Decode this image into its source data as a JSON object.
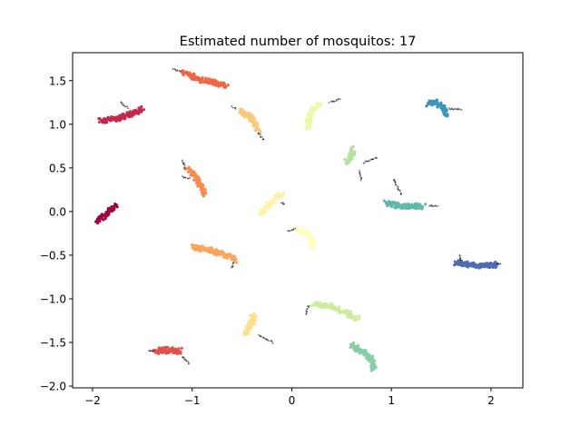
{
  "chart_data": {
    "type": "scatter",
    "title": "Estimated number of mosquitos: 17",
    "xlabel": "",
    "ylabel": "",
    "xlim": [
      -2.2,
      2.32
    ],
    "ylim": [
      -2.02,
      1.82
    ],
    "xticks": [
      -2,
      -1,
      0,
      1,
      2
    ],
    "xtick_labels": [
      "−2",
      "−1",
      "0",
      "1",
      "2"
    ],
    "yticks": [
      -2.0,
      -1.5,
      -1.0,
      -0.5,
      0.0,
      0.5,
      1.0,
      1.5
    ],
    "ytick_labels": [
      "−2.0",
      "−1.5",
      "−1.0",
      "−0.5",
      "0.0",
      "0.5",
      "1.0",
      "1.5"
    ],
    "grid": false,
    "legend": "none",
    "noise_color": "#000000",
    "clusters": [
      {
        "id": 0,
        "color": "#9e0142",
        "body": [
          [
            -1.96,
            -0.1
          ],
          [
            -1.85,
            -0.02
          ],
          [
            -1.77,
            0.07
          ]
        ],
        "legs": []
      },
      {
        "id": 1,
        "color": "#c2294a",
        "body": [
          [
            -1.92,
            1.04
          ],
          [
            -1.75,
            1.07
          ],
          [
            -1.6,
            1.12
          ],
          [
            -1.5,
            1.17
          ]
        ],
        "legs": [
          [
            [
              -1.65,
              1.19
            ],
            [
              -1.72,
              1.25
            ]
          ]
        ]
      },
      {
        "id": 2,
        "color": "#e1504a",
        "body": [
          [
            -1.38,
            -1.6
          ],
          [
            -1.25,
            -1.59
          ],
          [
            -1.12,
            -1.6
          ]
        ],
        "legs": [
          [
            [
              -1.1,
              -1.66
            ],
            [
              -1.03,
              -1.74
            ]
          ],
          [
            [
              -1.39,
              -1.6
            ],
            [
              -1.44,
              -1.6
            ]
          ]
        ]
      },
      {
        "id": 3,
        "color": "#f06744",
        "body": [
          [
            -1.1,
            1.6
          ],
          [
            -0.95,
            1.52
          ],
          [
            -0.8,
            1.48
          ],
          [
            -0.66,
            1.44
          ]
        ],
        "legs": [
          [
            [
              -1.12,
              1.61
            ],
            [
              -1.19,
              1.63
            ]
          ]
        ]
      },
      {
        "id": 4,
        "color": "#f88d51",
        "body": [
          [
            -1.05,
            0.5
          ],
          [
            -0.98,
            0.42
          ],
          [
            -0.91,
            0.3
          ],
          [
            -0.88,
            0.19
          ]
        ],
        "legs": [
          [
            [
              -1.07,
              0.5
            ],
            [
              -1.1,
              0.58
            ]
          ],
          [
            [
              -1.03,
              0.38
            ],
            [
              -1.1,
              0.4
            ]
          ]
        ]
      },
      {
        "id": 5,
        "color": "#fba45c",
        "body": [
          [
            -1.0,
            -0.41
          ],
          [
            -0.83,
            -0.44
          ],
          [
            -0.68,
            -0.49
          ],
          [
            -0.57,
            -0.56
          ]
        ],
        "legs": [
          [
            [
              -0.58,
              -0.58
            ],
            [
              -0.6,
              -0.65
            ]
          ]
        ]
      },
      {
        "id": 6,
        "color": "#fdc877",
        "body": [
          [
            -0.52,
            1.16
          ],
          [
            -0.43,
            1.09
          ],
          [
            -0.36,
            1.0
          ],
          [
            -0.34,
            0.93
          ]
        ],
        "legs": [
          [
            [
              -0.56,
              1.18
            ],
            [
              -0.6,
              1.2
            ]
          ],
          [
            [
              -0.34,
              0.9
            ],
            [
              -0.28,
              0.82
            ]
          ]
        ]
      },
      {
        "id": 7,
        "color": "#fee08b",
        "body": [
          [
            -0.47,
            -1.4
          ],
          [
            -0.43,
            -1.34
          ],
          [
            -0.4,
            -1.26
          ],
          [
            -0.38,
            -1.18
          ]
        ],
        "legs": [
          [
            [
              -0.33,
              -1.42
            ],
            [
              -0.19,
              -1.5
            ]
          ]
        ]
      },
      {
        "id": 8,
        "color": "#fff2a9",
        "body": [
          [
            -0.31,
            -0.03
          ],
          [
            -0.24,
            0.07
          ],
          [
            -0.16,
            0.15
          ],
          [
            -0.09,
            0.2
          ]
        ],
        "legs": [
          [
            [
              -0.1,
              0.1
            ],
            [
              -0.08,
              0.09
            ]
          ]
        ]
      },
      {
        "id": 9,
        "color": "#ffffbe",
        "body": [
          [
            0.06,
            -0.21
          ],
          [
            0.14,
            -0.24
          ],
          [
            0.2,
            -0.3
          ],
          [
            0.22,
            -0.4
          ]
        ],
        "legs": [
          [
            [
              0.03,
              -0.2
            ],
            [
              -0.04,
              -0.22
            ]
          ]
        ]
      },
      {
        "id": 10,
        "color": "#eff8a6",
        "body": [
          [
            0.16,
            0.95
          ],
          [
            0.17,
            1.05
          ],
          [
            0.2,
            1.17
          ],
          [
            0.28,
            1.23
          ]
        ],
        "legs": [
          [
            [
              0.38,
              1.25
            ],
            [
              0.48,
              1.29
            ]
          ]
        ]
      },
      {
        "id": 11,
        "color": "#cfec9d",
        "body": [
          [
            0.22,
            -1.06
          ],
          [
            0.38,
            -1.08
          ],
          [
            0.52,
            -1.15
          ],
          [
            0.66,
            -1.23
          ]
        ],
        "legs": [
          [
            [
              0.17,
              -1.08
            ],
            [
              0.14,
              -1.18
            ]
          ]
        ]
      },
      {
        "id": 12,
        "color": "#b5e2a1",
        "body": [
          [
            0.55,
            0.55
          ],
          [
            0.6,
            0.63
          ],
          [
            0.61,
            0.74
          ]
        ],
        "legs": [
          [
            [
              0.72,
              0.56
            ],
            [
              0.85,
              0.62
            ]
          ],
          [
            [
              0.68,
              0.46
            ],
            [
              0.7,
              0.36
            ]
          ]
        ]
      },
      {
        "id": 13,
        "color": "#87cfa4",
        "body": [
          [
            0.6,
            -1.52
          ],
          [
            0.7,
            -1.6
          ],
          [
            0.8,
            -1.69
          ],
          [
            0.82,
            -1.8
          ]
        ],
        "legs": []
      },
      {
        "id": 14,
        "color": "#5fbaa8",
        "body": [
          [
            0.95,
            0.1
          ],
          [
            1.05,
            0.07
          ],
          [
            1.18,
            0.06
          ],
          [
            1.32,
            0.06
          ]
        ],
        "legs": [
          [
            [
              1.1,
              0.2
            ],
            [
              1.02,
              0.37
            ]
          ],
          [
            [
              1.38,
              0.07
            ],
            [
              1.46,
              0.06
            ]
          ]
        ]
      },
      {
        "id": 15,
        "color": "#3d95b8",
        "body": [
          [
            1.36,
            1.23
          ],
          [
            1.45,
            1.25
          ],
          [
            1.52,
            1.18
          ],
          [
            1.55,
            1.1
          ]
        ],
        "legs": [
          [
            [
              1.58,
              1.18
            ],
            [
              1.7,
              1.17
            ]
          ]
        ]
      },
      {
        "id": 16,
        "color": "#4e6db1",
        "body": [
          [
            1.65,
            -0.59
          ],
          [
            1.78,
            -0.61
          ],
          [
            1.92,
            -0.62
          ],
          [
            2.06,
            -0.61
          ]
        ],
        "legs": [
          [
            [
              1.7,
              -0.56
            ],
            [
              1.68,
              -0.5
            ]
          ],
          [
            [
              2.06,
              -0.6
            ],
            [
              2.1,
              -0.6
            ]
          ]
        ]
      }
    ]
  }
}
